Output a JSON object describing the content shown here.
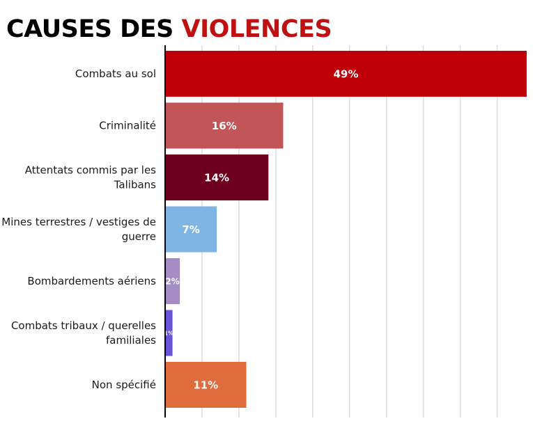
{
  "chart_data": {
    "type": "bar",
    "orientation": "horizontal",
    "title": {
      "part1": "CAUSES DES ",
      "part2": "VIOLENCES"
    },
    "title_colors": {
      "part1": "#000000",
      "part2": "#bf1111"
    },
    "xlabel": "",
    "ylabel": "",
    "xlim": [
      0,
      50
    ],
    "grid": true,
    "grid_step": 5,
    "legend": "none",
    "categories": [
      [
        "Combats au sol"
      ],
      [
        "Criminalité"
      ],
      [
        "Attentats commis par les",
        "Talibans"
      ],
      [
        "Mines terrestres / vestiges de",
        "guerre"
      ],
      [
        "Bombardements aériens"
      ],
      [
        "Combats tribaux / querelles",
        "familiales"
      ],
      [
        "Non spécifié"
      ]
    ],
    "values": [
      49,
      16,
      14,
      7,
      2,
      1,
      11
    ],
    "value_labels": [
      "49%",
      "16%",
      "14%",
      "7%",
      "2%",
      "1%",
      "11%"
    ],
    "colors": [
      "#bf0008",
      "#c25558",
      "#6d001c",
      "#7fb5e4",
      "#a38dc4",
      "#6754d6",
      "#e06b3d"
    ]
  }
}
